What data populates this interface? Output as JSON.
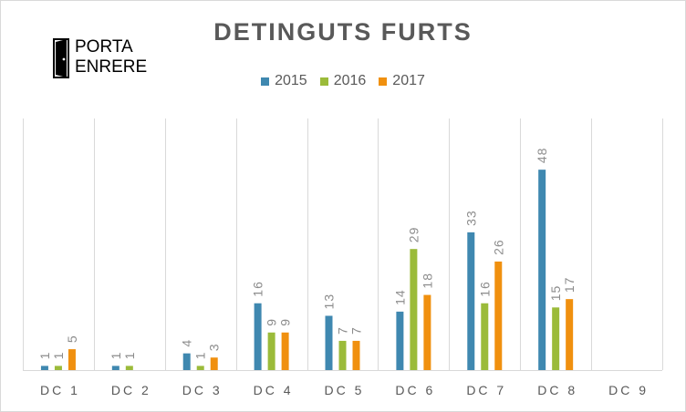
{
  "logo": {
    "line1": "PORTA",
    "line2": "ENRERE",
    "icon": "door-icon"
  },
  "chart_data": {
    "type": "bar",
    "title": "DETINGUTS FURTS",
    "categories": [
      "DC 1",
      "DC 2",
      "DC 3",
      "DC 4",
      "DC 5",
      "DC 6",
      "DC 7",
      "DC 8",
      "DC 9"
    ],
    "series": [
      {
        "name": "2015",
        "color": "#3f88b0",
        "values": [
          1,
          1,
          4,
          16,
          13,
          14,
          33,
          48,
          null
        ]
      },
      {
        "name": "2016",
        "color": "#9bbb3a",
        "values": [
          1,
          1,
          1,
          9,
          7,
          29,
          16,
          15,
          null
        ]
      },
      {
        "name": "2017",
        "color": "#f0900f",
        "values": [
          5,
          null,
          3,
          9,
          7,
          18,
          26,
          17,
          null
        ]
      }
    ],
    "ylim": [
      0,
      60
    ],
    "legend": "top",
    "gridlines": "vertical category separators",
    "data_labels": "rotated above bars"
  }
}
